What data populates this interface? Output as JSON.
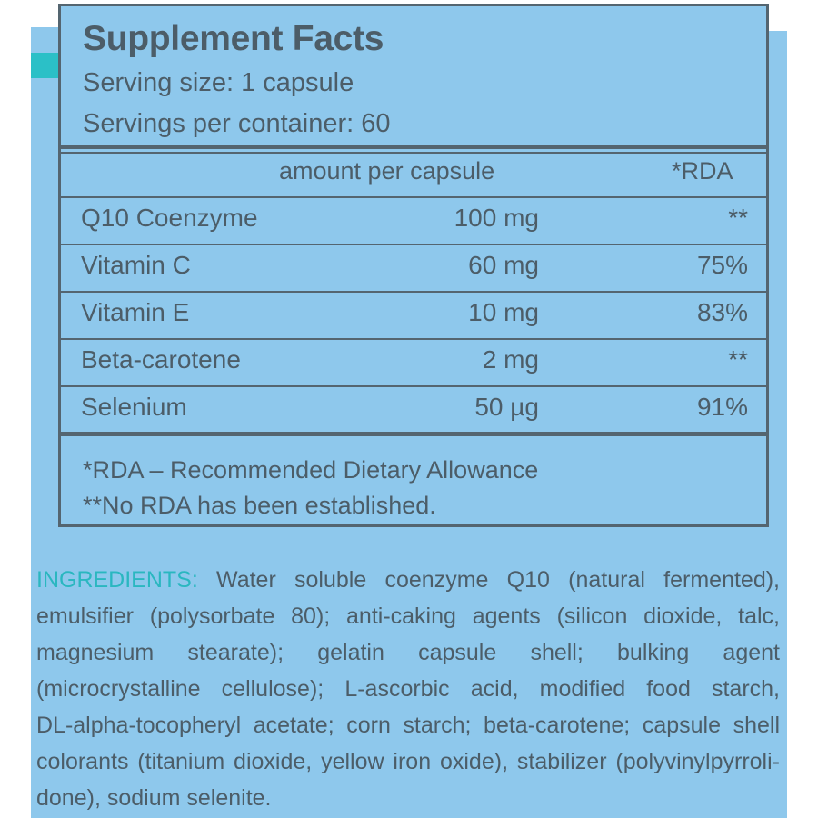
{
  "facts": {
    "title": "Supplement Facts",
    "serving_size": "Serving size: 1 capsule",
    "servings_per_container": "Servings per container: 60",
    "col_amount": "amount per capsule",
    "col_rda": "*RDA",
    "rows": [
      {
        "name": "Q10 Coenzyme",
        "amount": "100 mg",
        "rda": "**"
      },
      {
        "name": "Vitamin C",
        "amount": "60 mg",
        "rda": "75%"
      },
      {
        "name": "Vitamin E",
        "amount": "10 mg",
        "rda": "83%"
      },
      {
        "name": "Beta-carotene",
        "amount": "2 mg",
        "rda": "**"
      },
      {
        "name": "Selenium",
        "amount": "50 µg",
        "rda": "91%"
      }
    ],
    "footnote_1": "*RDA – Recommended Dietary Allowance",
    "footnote_2": "**No RDA has been established."
  },
  "ingredients": {
    "label": "INGREDIENTS:",
    "lines": [
      " Water soluble coenzyme Q10 (natural fermented),",
      "emulsifier (polysorbate 80); anti-caking agents (silicon dioxide, talc,",
      "magnesium stearate); gelatin capsule shell; bulking agent",
      "(microcrystalline cellulose); L-ascorbic acid, modified food starch,",
      "DL-alpha-tocopheryl acetate; corn starch; beta-carotene; capsule shell",
      "colorants (titanium dioxide, yellow iron oxide), stabilizer (polyvinylpyrroli-",
      "done), sodium selenite."
    ]
  },
  "colors": {
    "background": "#8ec8ec",
    "text": "#4c5d68",
    "border": "#546570",
    "accent_teal": "#2ab7c0"
  }
}
